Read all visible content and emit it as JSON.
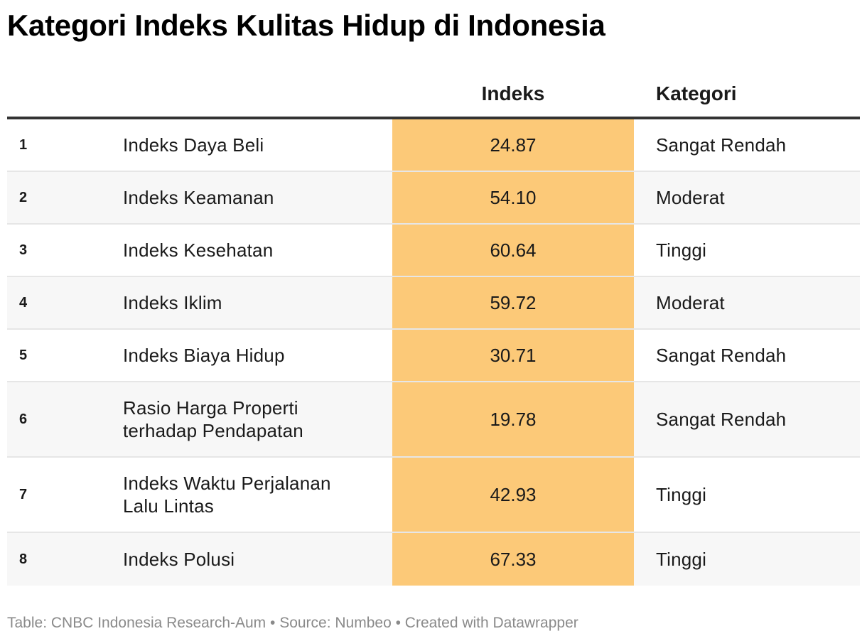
{
  "title": "Kategori Indeks Kulitas Hidup di Indonesia",
  "header": {
    "col_indeks": "Indeks",
    "col_kategori": "Kategori"
  },
  "colors": {
    "highlight": "#fcc978",
    "header_rule": "#333333",
    "row_stripe": "#f7f7f7",
    "footer_text": "#8a8a8a"
  },
  "chart_data": {
    "type": "table",
    "title": "Kategori Indeks Kulitas Hidup di Indonesia",
    "columns": [
      "",
      "",
      "Indeks",
      "Kategori"
    ],
    "rows": [
      {
        "no": "1",
        "name": "Indeks Daya Beli",
        "value": "24.87",
        "category": "Sangat Rendah"
      },
      {
        "no": "2",
        "name": "Indeks Keamanan",
        "value": "54.10",
        "category": "Moderat"
      },
      {
        "no": "3",
        "name": "Indeks Kesehatan",
        "value": "60.64",
        "category": "Tinggi"
      },
      {
        "no": "4",
        "name": "Indeks Iklim",
        "value": "59.72",
        "category": "Moderat"
      },
      {
        "no": "5",
        "name": "Indeks Biaya Hidup",
        "value": "30.71",
        "category": "Sangat Rendah"
      },
      {
        "no": "6",
        "name": "Rasio Harga Properti terhadap Pendapatan",
        "value": "19.78",
        "category": "Sangat Rendah"
      },
      {
        "no": "7",
        "name": "Indeks Waktu Perjalanan Lalu Lintas",
        "value": "42.93",
        "category": "Tinggi"
      },
      {
        "no": "8",
        "name": "Indeks Polusi",
        "value": "67.33",
        "category": "Tinggi"
      }
    ]
  },
  "footer": "Table: CNBC Indonesia Research-Aum • Source: Numbeo • Created with Datawrapper"
}
